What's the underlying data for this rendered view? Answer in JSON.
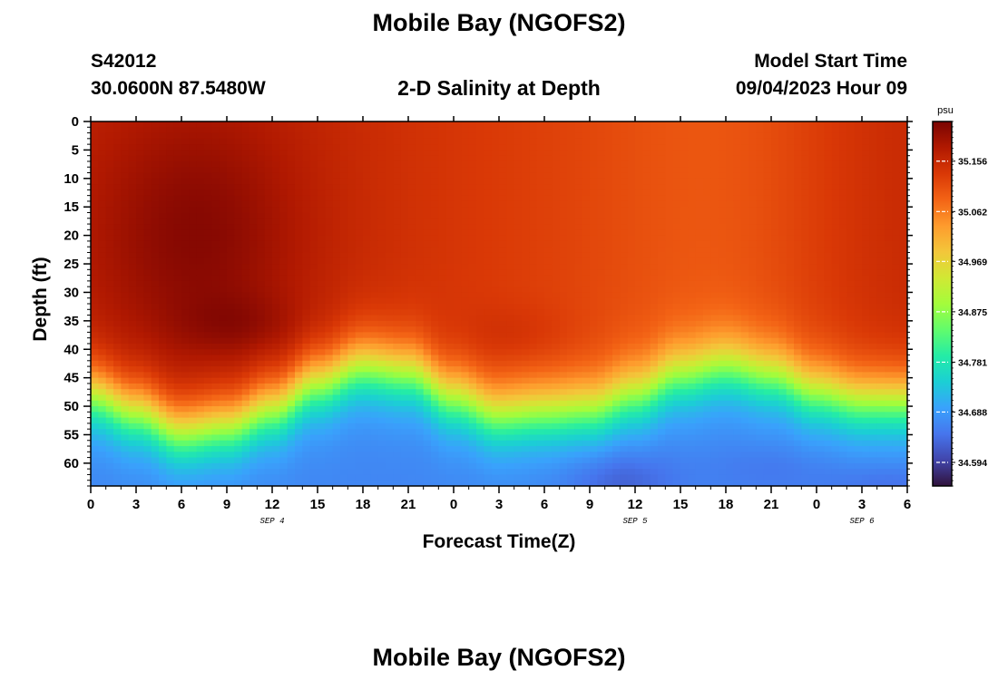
{
  "page": {
    "title_top": "Mobile Bay (NGOFS2)",
    "title_bottom": "Mobile Bay (NGOFS2)",
    "station": "S42012",
    "location": "30.0600N  87.5480W",
    "model_start_label": "Model Start Time",
    "model_start_value": "09/04/2023 Hour 09"
  },
  "chart_data": {
    "type": "heatmap",
    "title": "2-D Salinity at Depth",
    "xlabel": "Forecast Time(Z)",
    "ylabel": "Depth (ft)",
    "x_tick_labels": [
      "0",
      "3",
      "6",
      "9",
      "12",
      "15",
      "18",
      "21",
      "0",
      "3",
      "6",
      "9",
      "12",
      "15",
      "18",
      "21",
      "0",
      "3",
      "6"
    ],
    "x_date_labels": [
      {
        "label": "SEP 4",
        "hour_offset": 12
      },
      {
        "label": "SEP 5",
        "hour_offset": 36
      },
      {
        "label": "SEP 6",
        "hour_offset": 51
      }
    ],
    "x_range_hours": [
      0,
      54
    ],
    "x_start": "09/04/2023 00Z",
    "y_ticks": [
      0,
      5,
      10,
      15,
      20,
      25,
      30,
      35,
      40,
      45,
      50,
      55,
      60
    ],
    "y_range_ft": [
      0,
      64
    ],
    "y_inverted": true,
    "colorbar": {
      "unit": "psu",
      "min": 34.55,
      "max": 35.23,
      "tick_values": [
        35.156,
        35.062,
        34.969,
        34.875,
        34.781,
        34.688,
        34.594
      ],
      "colormap": [
        "#30123b",
        "#4145ab",
        "#4675ed",
        "#39a2fc",
        "#1bcfd4",
        "#24eca6",
        "#61fc6c",
        "#a4fc3b",
        "#d1e834",
        "#f3c63a",
        "#fe9b2d",
        "#f36315",
        "#d93806",
        "#b11901",
        "#7a0402"
      ]
    },
    "halocline_depth_ft": [
      {
        "hour": 0,
        "depth": 43
      },
      {
        "hour": 3,
        "depth": 46
      },
      {
        "hour": 6,
        "depth": 49.5
      },
      {
        "hour": 9,
        "depth": 48.5
      },
      {
        "hour": 12,
        "depth": 45.5
      },
      {
        "hour": 15,
        "depth": 41
      },
      {
        "hour": 18,
        "depth": 38
      },
      {
        "hour": 21,
        "depth": 39
      },
      {
        "hour": 24,
        "depth": 43.5
      },
      {
        "hour": 27,
        "depth": 46.5
      },
      {
        "hour": 30,
        "depth": 46
      },
      {
        "hour": 33,
        "depth": 45.5
      },
      {
        "hour": 36,
        "depth": 43
      },
      {
        "hour": 39,
        "depth": 39.5
      },
      {
        "hour": 42,
        "depth": 38
      },
      {
        "hour": 45,
        "depth": 39.5
      },
      {
        "hour": 48,
        "depth": 42.5
      },
      {
        "hour": 51,
        "depth": 44
      },
      {
        "hour": 54,
        "depth": 44
      }
    ]
  }
}
